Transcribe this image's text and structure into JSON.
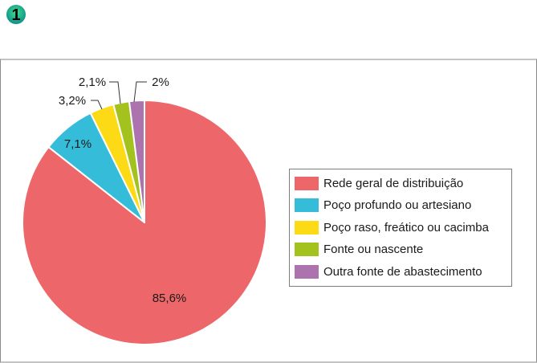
{
  "badge": {
    "number": "1",
    "icon": "number-badge-icon"
  },
  "chart_data": {
    "type": "pie",
    "title": "",
    "start_angle_deg": 0,
    "direction": "clockwise",
    "categories": [
      "Rede geral de distribuição",
      "Poço profundo ou artesiano",
      "Poço raso, freático ou cacimba",
      "Fonte ou nascente",
      "Outra fonte de abastecimento"
    ],
    "values": [
      85.6,
      7.1,
      3.2,
      2.1,
      2.0
    ],
    "labels": [
      "85,6%",
      "7,1%",
      "3,2%",
      "2,1%",
      "2%"
    ],
    "colors": [
      "#ed676a",
      "#35bcd9",
      "#fcdb16",
      "#a4c21d",
      "#ac73ae"
    ],
    "legend_position": "right"
  },
  "legend": {
    "items": [
      {
        "label": "Rede geral de distribuição",
        "color": "#ed676a"
      },
      {
        "label": "Poço profundo ou artesiano",
        "color": "#35bcd9"
      },
      {
        "label": "Poço raso, freático ou cacimba",
        "color": "#fcdb16"
      },
      {
        "label": "Fonte ou nascente",
        "color": "#a4c21d"
      },
      {
        "label": "Outra fonte de abastecimento",
        "color": "#ac73ae"
      }
    ]
  }
}
